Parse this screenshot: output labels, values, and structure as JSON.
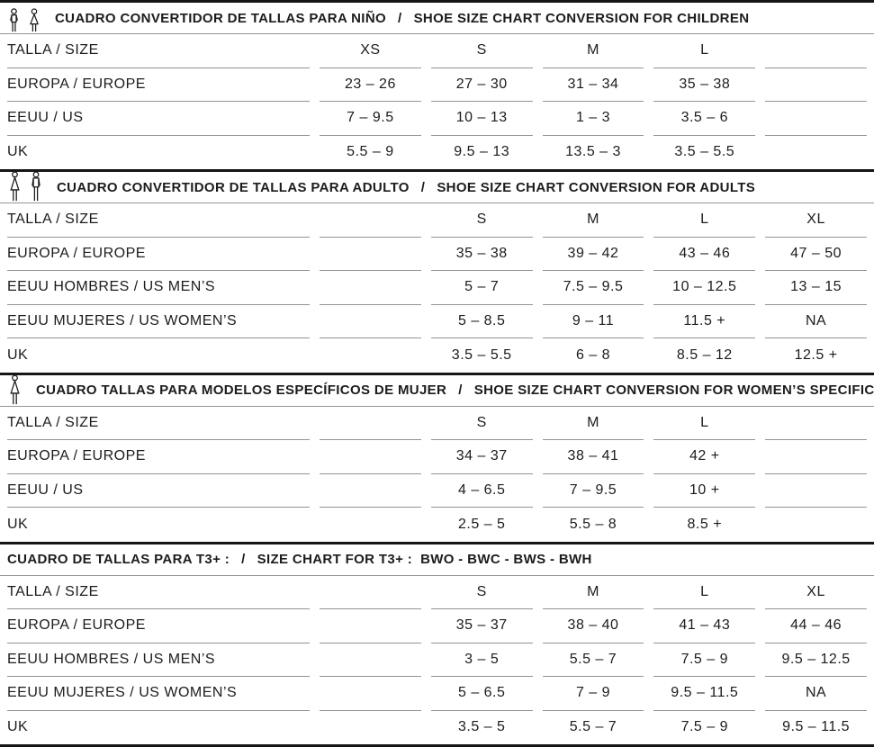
{
  "page": {
    "background": "#ffffff",
    "text_color": "#1c1c1c",
    "thin_line_color": "#949494",
    "thick_line_color": "#161616"
  },
  "sections": [
    {
      "id": "children",
      "icons": [
        "child-boy-icon",
        "child-girl-icon"
      ],
      "title_es": "CUADRO CONVERTIDOR DE TALLAS PARA NIÑO",
      "slash": "/",
      "title_en": "SHOE SIZE CHART CONVERSION FOR CHILDREN",
      "rows": [
        {
          "label": "TALLA / SIZE",
          "values": [
            "XS",
            "S",
            "M",
            "L",
            ""
          ]
        },
        {
          "label": "EUROPA / EUROPE",
          "values": [
            "23 – 26",
            "27 – 30",
            "31 – 34",
            "35 – 38",
            ""
          ]
        },
        {
          "label": "EEUU / US",
          "values": [
            "7 – 9.5",
            "10 – 13",
            "1 – 3",
            "3.5 – 6",
            ""
          ]
        },
        {
          "label": "UK",
          "values": [
            "5.5 – 9",
            "9.5 – 13",
            "13.5 – 3",
            "3.5 – 5.5",
            ""
          ]
        }
      ]
    },
    {
      "id": "adults",
      "icons": [
        "woman-icon",
        "man-icon"
      ],
      "title_es": "CUADRO CONVERTIDOR DE TALLAS PARA ADULTO",
      "slash": "/",
      "title_en": "SHOE SIZE CHART CONVERSION FOR ADULTS",
      "rows": [
        {
          "label": "TALLA / SIZE",
          "values": [
            "",
            "S",
            "M",
            "L",
            "XL"
          ]
        },
        {
          "label": "EUROPA / EUROPE",
          "values": [
            "",
            "35 – 38",
            "39 – 42",
            "43 – 46",
            "47 – 50"
          ]
        },
        {
          "label": "EEUU HOMBRES / US MEN’S",
          "values": [
            "",
            "5 – 7",
            "7.5 – 9.5",
            "10 – 12.5",
            "13 – 15"
          ]
        },
        {
          "label": "EEUU MUJERES / US WOMEN’S",
          "values": [
            "",
            "5 – 8.5",
            "9 – 11",
            "11.5 +",
            "NA"
          ]
        },
        {
          "label": "UK",
          "values": [
            "",
            "3.5 – 5.5",
            "6 – 8",
            "8.5 – 12",
            "12.5 +"
          ]
        }
      ]
    },
    {
      "id": "womens-specific",
      "icons": [
        "woman-icon"
      ],
      "title_es": "CUADRO TALLAS PARA MODELOS ESPECÍFICOS DE MUJER",
      "slash": "/",
      "title_en": "SHOE SIZE CHART CONVERSION FOR WOMEN’S SPECIFIC",
      "rows": [
        {
          "label": "TALLA / SIZE",
          "values": [
            "",
            "S",
            "M",
            "L",
            ""
          ]
        },
        {
          "label": "EUROPA / EUROPE",
          "values": [
            "",
            "34 – 37",
            "38 – 41",
            "42 +",
            ""
          ]
        },
        {
          "label": "EEUU / US",
          "values": [
            "",
            "4 – 6.5",
            "7 – 9.5",
            "10 +",
            ""
          ]
        },
        {
          "label": "UK",
          "values": [
            "",
            "2.5 – 5",
            "5.5 – 8",
            "8.5 +",
            ""
          ]
        }
      ]
    },
    {
      "id": "t3plus",
      "icons": [],
      "title_es": "CUADRO DE TALLAS PARA T3+ :",
      "slash": "/",
      "title_en": "SIZE CHART FOR T3+ :  BWO - BWC - BWS - BWH",
      "rows": [
        {
          "label": "TALLA / SIZE",
          "values": [
            "",
            "S",
            "M",
            "L",
            "XL"
          ]
        },
        {
          "label": "EUROPA / EUROPE",
          "values": [
            "",
            "35 – 37",
            "38 – 40",
            "41 – 43",
            "44 – 46"
          ]
        },
        {
          "label": "EEUU HOMBRES / US MEN’S",
          "values": [
            "",
            "3 – 5",
            "5.5 – 7",
            "7.5 – 9",
            "9.5 – 12.5"
          ]
        },
        {
          "label": "EEUU MUJERES / US WOMEN’S",
          "values": [
            "",
            "5 – 6.5",
            "7 – 9",
            "9.5 – 11.5",
            "NA"
          ]
        },
        {
          "label": "UK",
          "values": [
            "",
            "3.5 – 5",
            "5.5 – 7",
            "7.5 – 9",
            "9.5 – 11.5"
          ]
        }
      ]
    }
  ]
}
